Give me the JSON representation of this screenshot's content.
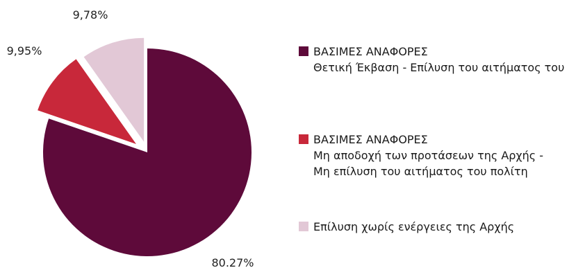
{
  "chart_data": {
    "type": "pie",
    "title": "",
    "start_angle_deg": 0,
    "direction": "clockwise",
    "exploded": [
      "B",
      "C"
    ],
    "legend_position": "right",
    "slices": [
      {
        "key": "A",
        "value": 80.27,
        "label": "80.27%",
        "color": "#5e0a3a",
        "legend": [
          "ΒΑΣΙΜΕΣ ΑΝΑΦΟΡΕΣ",
          "Θετική Έκβαση - Επίλυση του αιτήματος του"
        ]
      },
      {
        "key": "B",
        "value": 9.95,
        "label": "9,95%",
        "color": "#c8283a",
        "legend": [
          "ΒΑΣΙΜΕΣ ΑΝΑΦΟΡΕΣ",
          "Μη αποδοχή των προτάσεων της Αρχής -",
          "Μη επίλυση του αιτήματος του πολίτη"
        ]
      },
      {
        "key": "C",
        "value": 9.78,
        "label": "9,78%",
        "color": "#e2c8d6",
        "legend": [
          "Επίλυση χωρίς ενέργειες της Αρχής"
        ]
      }
    ]
  }
}
